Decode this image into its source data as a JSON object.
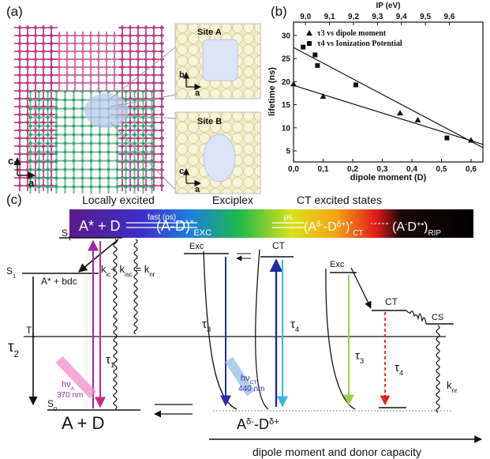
{
  "panel_a": {
    "label": "(a)",
    "site_a": "Site A",
    "site_b": "Site B",
    "axes_a": [
      "b",
      "a"
    ],
    "axes_b": [
      "c",
      "a"
    ],
    "axes_main": [
      "c",
      "a"
    ]
  },
  "chart_data": {
    "type": "scatter",
    "label": "(b)",
    "x_label": "dipole moment (D)",
    "x2_label": "IP (eV)",
    "y_label": "lifetime (ns)",
    "xlim": [
      0,
      0.64
    ],
    "x2lim": [
      8.95,
      9.74
    ],
    "ylim": [
      2.6,
      32.9
    ],
    "xticks": [
      {
        "value": 0,
        "label": "0,0"
      },
      {
        "value": 0.1,
        "label": "0,1"
      },
      {
        "value": 0.2,
        "label": "0,2"
      },
      {
        "value": 0.3,
        "label": "0,3"
      },
      {
        "value": 0.4,
        "label": "0,4"
      },
      {
        "value": 0.5,
        "label": "0,5"
      },
      {
        "value": 0.6,
        "label": "0,6"
      }
    ],
    "x2ticks": [
      {
        "value": 9,
        "label": "9,0"
      },
      {
        "value": 9.1,
        "label": "9,1"
      },
      {
        "value": 9.2,
        "label": "9,2"
      },
      {
        "value": 9.3,
        "label": "9,3"
      },
      {
        "value": 9.4,
        "label": "9,4"
      },
      {
        "value": 9.5,
        "label": "9,5"
      },
      {
        "value": 9.6,
        "label": "9,6"
      }
    ],
    "yticks": [
      5,
      10,
      15,
      20,
      25,
      30
    ],
    "series": [
      {
        "name": "τ3 vs dipole moment",
        "marker": "triangle",
        "color": "#111111",
        "x": [
          0,
          0.1,
          0.36,
          0.42,
          0.6
        ],
        "values": [
          19.5,
          16.8,
          13.2,
          11.7,
          7.3
        ]
      },
      {
        "name": "τ4 vs Ionization Potential",
        "marker": "square",
        "color": "#111111",
        "axis": "x2",
        "x": [
          8.99,
          9.04,
          9.05,
          9.21,
          9.59
        ],
        "values": [
          27.5,
          25.8,
          23.5,
          19.3,
          7.8
        ]
      }
    ],
    "fit_lines": [
      {
        "color": "#111111",
        "x": [
          0,
          0.64
        ],
        "values": [
          27.4,
          5.7
        ]
      },
      {
        "color": "#111111",
        "x": [
          0,
          0.64
        ],
        "values": [
          19.2,
          6.4
        ]
      }
    ]
  },
  "panel_c": {
    "label": "(c)",
    "headers": [
      "Locally excited",
      "Exciplex",
      "CT excited states"
    ],
    "bar_le": "A* + D",
    "bar_fast": "fast (ps)",
    "bar_exc": [
      "(A-D)",
      "*",
      "EXC"
    ],
    "bar_ps": "ps",
    "bar_ct": [
      "(A",
      "δ-",
      "-D",
      "δ+",
      ")",
      "*",
      "CT"
    ],
    "bar_rip": [
      "(A",
      "-",
      "D",
      "+•",
      ")",
      "RIP"
    ],
    "s1": [
      "S",
      "1"
    ],
    "s1b": [
      "S",
      "1"
    ],
    "t1": [
      "T",
      "1"
    ],
    "s0": [
      "S",
      "0"
    ],
    "a_bdc": "A* + bdc",
    "rates": [
      "k",
      "ic",
      "+ k",
      "isc",
      " = k",
      "nr"
    ],
    "tau2": [
      "τ",
      "2"
    ],
    "tau1": [
      "τ",
      "1"
    ],
    "tau3a": [
      "τ",
      "3"
    ],
    "tau4a": [
      "τ",
      "4"
    ],
    "tau3b": [
      "τ",
      "3"
    ],
    "tau4b": [
      "τ",
      "4"
    ],
    "hv_a": [
      "hν",
      "A"
    ],
    "nm_a": "370 nm",
    "hv_ct": [
      "hν",
      "CT"
    ],
    "nm_ct": "440 nm",
    "exc1": "Exc",
    "ct1": "CT",
    "exc2": "Exc",
    "ct2": "CT",
    "cs": "CS",
    "knr": [
      "k",
      "nr"
    ],
    "ground_ld": "A + D",
    "ground_ct": [
      "A",
      "δ-",
      "-D",
      "δ+"
    ],
    "axis": "dipole moment  and  donor capacity"
  }
}
